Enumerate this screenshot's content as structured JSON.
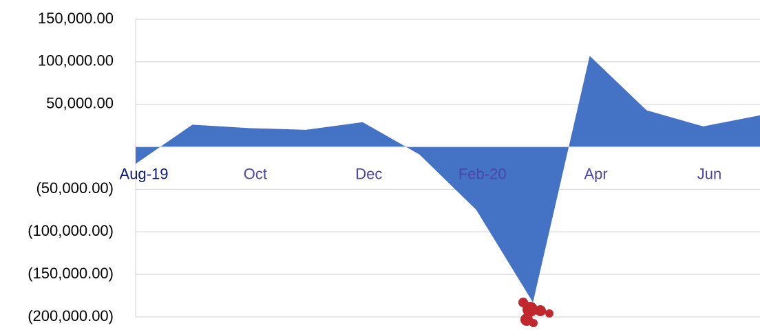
{
  "chart_data": {
    "type": "area",
    "categories": [
      "Aug-19",
      null,
      "Oct",
      null,
      "Dec",
      null,
      "Feb-20",
      null,
      "Apr",
      null,
      "Jun",
      null
    ],
    "values": [
      -20000,
      26000,
      22000,
      20000,
      29000,
      -9000,
      -74000,
      -183000,
      107000,
      43000,
      24000,
      37000
    ],
    "color": "#4472c4",
    "ylim": [
      -200000,
      150000
    ],
    "yticks": [
      {
        "value": -200000,
        "label": "(200,000.00)"
      },
      {
        "value": -150000,
        "label": "(150,000.00)"
      },
      {
        "value": -100000,
        "label": "(100,000.00)"
      },
      {
        "value": -50000,
        "label": "(50,000.00)"
      },
      {
        "value": 0,
        "label": ""
      },
      {
        "value": 50000,
        "label": "50,000.00"
      },
      {
        "value": 100000,
        "label": "100,000.00"
      },
      {
        "value": 150000,
        "label": "150,000.00"
      }
    ],
    "grid": true
  }
}
